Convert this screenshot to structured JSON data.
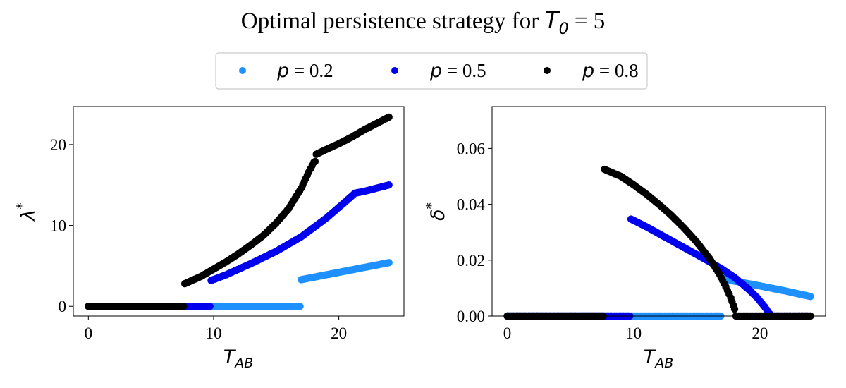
{
  "title": {
    "prefix": "Optimal persistence strategy for ",
    "var": "T",
    "sub": "0",
    "suffix": " = 5"
  },
  "legend": {
    "placement": "top-center, above plots",
    "entries": [
      {
        "var": "p",
        "text": " = 0.2",
        "color": "#1e90ff"
      },
      {
        "var": "p",
        "text": " = 0.5",
        "color": "#0000ee"
      },
      {
        "var": "p",
        "text": " = 0.8",
        "color": "#000000"
      }
    ]
  },
  "chart_data": [
    {
      "type": "scatter",
      "xlabel": {
        "var": "T",
        "sub": "AB"
      },
      "ylabel": {
        "var": "λ",
        "sup": "*"
      },
      "xlim": [
        -1.2,
        25.2
      ],
      "ylim": [
        -1.2,
        24.7
      ],
      "xticks": [
        0,
        10,
        20
      ],
      "yticks": [
        0,
        10,
        20
      ],
      "grid": false,
      "series": [
        {
          "name": "p = 0.2",
          "color": "#1e90ff",
          "segments": [
            {
              "x": [
                0,
                16.9
              ],
              "y": [
                0,
                0
              ]
            },
            {
              "x": [
                17.0,
                18.0,
                20.0,
                22.0,
                24.0
              ],
              "y": [
                3.3,
                3.6,
                4.2,
                4.8,
                5.4
              ]
            }
          ]
        },
        {
          "name": "p = 0.5",
          "color": "#0000ee",
          "segments": [
            {
              "x": [
                0,
                9.7
              ],
              "y": [
                0,
                0
              ]
            },
            {
              "x": [
                9.8,
                11.0,
                13.0,
                15.0,
                17.0,
                19.0,
                20.5,
                21.3,
                22.0,
                23.0,
                24.0
              ],
              "y": [
                3.2,
                3.9,
                5.3,
                6.8,
                8.6,
                10.9,
                12.9,
                14.0,
                14.2,
                14.6,
                15.0
              ]
            }
          ]
        },
        {
          "name": "p = 0.8",
          "color": "#000000",
          "segments": [
            {
              "x": [
                0,
                7.6
              ],
              "y": [
                0,
                0
              ]
            },
            {
              "x": [
                7.7,
                9.0,
                10.0,
                11.0,
                12.0,
                13.0,
                14.0,
                15.0,
                16.0,
                17.0,
                17.6,
                18.0,
                18.1
              ],
              "y": [
                2.8,
                3.7,
                4.6,
                5.5,
                6.5,
                7.6,
                8.8,
                10.3,
                12.1,
                14.6,
                16.6,
                17.8,
                17.9
              ]
            },
            {
              "x": [
                18.2,
                19.0,
                20.0,
                21.0,
                22.0,
                23.0,
                24.0
              ],
              "y": [
                18.8,
                19.4,
                20.1,
                20.9,
                21.8,
                22.6,
                23.4
              ]
            }
          ]
        }
      ]
    },
    {
      "type": "scatter",
      "xlabel": {
        "var": "T",
        "sub": "AB"
      },
      "ylabel": {
        "var": "δ",
        "sup": "*"
      },
      "xlim": [
        -1.2,
        25.2
      ],
      "ylim": [
        0.0,
        0.075
      ],
      "xticks": [
        0,
        10,
        20
      ],
      "yticks": [
        0.0,
        0.02,
        0.04,
        0.06
      ],
      "ytick_labels": [
        "0.00",
        "0.02",
        "0.04",
        "0.06"
      ],
      "grid": false,
      "series": [
        {
          "name": "p = 0.2",
          "color": "#1e90ff",
          "segments": [
            {
              "x": [
                0,
                16.9
              ],
              "y": [
                0,
                0
              ]
            },
            {
              "x": [
                17.0,
                18.0,
                20.0,
                22.0,
                24.0
              ],
              "y": [
                0.0135,
                0.0125,
                0.0108,
                0.009,
                0.007
              ]
            }
          ]
        },
        {
          "name": "p = 0.5",
          "color": "#0000ee",
          "segments": [
            {
              "x": [
                0,
                9.7
              ],
              "y": [
                0,
                0
              ]
            },
            {
              "x": [
                9.8,
                11.0,
                12.0,
                13.0,
                14.0,
                15.0,
                16.0,
                17.0,
                18.0,
                19.0,
                19.8,
                20.4,
                20.9
              ],
              "y": [
                0.0347,
                0.032,
                0.0295,
                0.027,
                0.0245,
                0.022,
                0.0195,
                0.0168,
                0.0138,
                0.01,
                0.0065,
                0.0032,
                0.0
              ]
            },
            {
              "x": [
                21.0,
                24.0
              ],
              "y": [
                0,
                0
              ]
            }
          ]
        },
        {
          "name": "p = 0.8",
          "color": "#000000",
          "segments": [
            {
              "x": [
                0,
                7.6
              ],
              "y": [
                0,
                0
              ]
            },
            {
              "x": [
                7.7,
                9.0,
                10.0,
                11.0,
                12.0,
                13.0,
                14.0,
                15.0,
                16.0,
                16.8,
                17.3,
                17.7,
                18.0,
                18.1
              ],
              "y": [
                0.0525,
                0.05,
                0.047,
                0.0437,
                0.04,
                0.036,
                0.0315,
                0.0265,
                0.0207,
                0.015,
                0.0105,
                0.0065,
                0.0025,
                0.0
              ]
            },
            {
              "x": [
                18.2,
                24.0
              ],
              "y": [
                0,
                0
              ]
            }
          ]
        }
      ]
    }
  ]
}
